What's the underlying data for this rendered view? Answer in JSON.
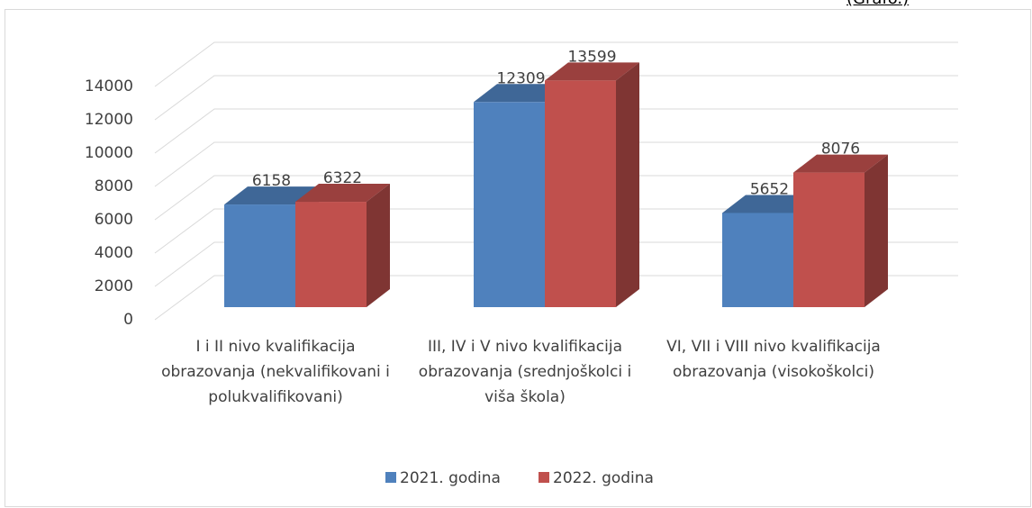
{
  "note": "(Grafo.)",
  "chart_data": {
    "type": "bar3d",
    "categories": [
      "I i II nivo kvalifikacija obrazovanja (nekvalifikovani i polukvalifikovani)",
      "III, IV i V nivo kvalifikacija obrazovanja (srednjoškolci i viša škola)",
      "VI, VII i VIII nivo kvalifikacija obrazovanja (visokoškolci)"
    ],
    "series": [
      {
        "name": "2021. godina",
        "color": "#4f81bd",
        "values": [
          6158,
          12309,
          5652
        ]
      },
      {
        "name": "2022. godina",
        "color": "#c0504d",
        "values": [
          6322,
          13599,
          8076
        ]
      }
    ],
    "ylim": [
      0,
      14000
    ],
    "yticks": [
      0,
      2000,
      4000,
      6000,
      8000,
      10000,
      12000,
      14000
    ],
    "grid": true,
    "legend": "bottom"
  }
}
